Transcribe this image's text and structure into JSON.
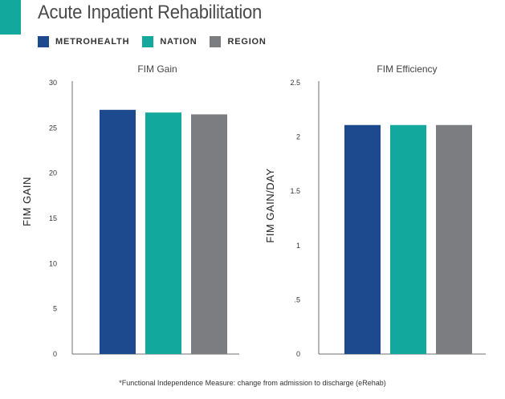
{
  "title": "Acute Inpatient Rehabilitation",
  "legend": [
    {
      "label": "METROHEALTH",
      "color": "#1d4a8f"
    },
    {
      "label": "NATION",
      "color": "#13a89e"
    },
    {
      "label": "REGION",
      "color": "#7c7d81"
    }
  ],
  "footnote": "*Functional Independence Measure: change from admission to discharge (eRehab)",
  "chart_data": [
    {
      "type": "bar",
      "title": "FIM Gain",
      "ylabel": "FIM GAIN",
      "xlabel": "",
      "categories": [
        "METROHEALTH",
        "NATION",
        "REGION"
      ],
      "values": [
        27.0,
        26.7,
        26.5
      ],
      "colors": [
        "#1d4a8f",
        "#13a89e",
        "#7c7d81"
      ],
      "ylim": [
        0,
        30
      ],
      "yticks": [
        0,
        5,
        10,
        15,
        20,
        25,
        30
      ],
      "ytick_labels": [
        "0",
        "5",
        "10",
        "15",
        "20",
        "25",
        "30"
      ],
      "grid": false
    },
    {
      "type": "bar",
      "title": "FIM Efficiency",
      "ylabel": "FIM GAIN/DAY",
      "xlabel": "",
      "categories": [
        "METROHEALTH",
        "NATION",
        "REGION"
      ],
      "values": [
        2.11,
        2.11,
        2.11
      ],
      "colors": [
        "#1d4a8f",
        "#13a89e",
        "#7c7d81"
      ],
      "ylim": [
        0,
        2.5
      ],
      "yticks": [
        0,
        0.5,
        1,
        1.5,
        2,
        2.5
      ],
      "ytick_labels": [
        "0",
        ".5",
        "1",
        "1.5",
        "2",
        "2.5"
      ],
      "grid": false
    }
  ]
}
